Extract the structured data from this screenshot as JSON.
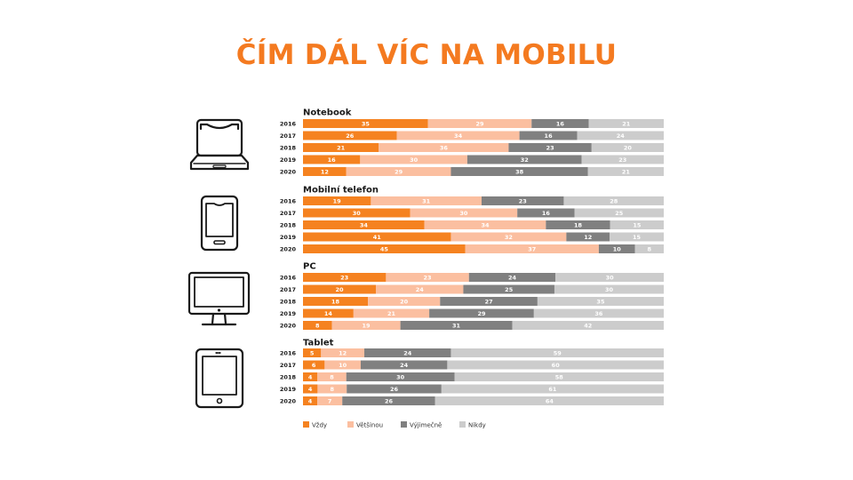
{
  "title": "ČÍM DÁL VÍC NA MOBILU",
  "colors": {
    "vzdy": "#F58220",
    "vetsinou": "#FBBFA0",
    "vyjimecne": "#808080",
    "nikdy": "#CCCCCC",
    "title": "#F47A20"
  },
  "chart_data": {
    "type": "bar",
    "orientation": "horizontal-stacked-100",
    "xlim": [
      0,
      100
    ],
    "legend_position": "bottom-left",
    "series_names": [
      "Vždy",
      "Většinou",
      "Výjimečně",
      "Nikdy"
    ],
    "groups": [
      {
        "name": "Notebook",
        "icon": "laptop-icon",
        "rows": [
          {
            "year": "2016",
            "values": [
              35,
              29,
              16,
              21
            ]
          },
          {
            "year": "2017",
            "values": [
              26,
              34,
              16,
              24
            ]
          },
          {
            "year": "2018",
            "values": [
              21,
              36,
              23,
              20
            ]
          },
          {
            "year": "2019",
            "values": [
              16,
              30,
              32,
              23
            ]
          },
          {
            "year": "2020",
            "values": [
              12,
              29,
              38,
              21
            ]
          }
        ]
      },
      {
        "name": "Mobilní telefon",
        "icon": "mobile-phone-icon",
        "rows": [
          {
            "year": "2016",
            "values": [
              19,
              31,
              23,
              28
            ]
          },
          {
            "year": "2017",
            "values": [
              30,
              30,
              16,
              25
            ]
          },
          {
            "year": "2018",
            "values": [
              34,
              34,
              18,
              15
            ]
          },
          {
            "year": "2019",
            "values": [
              41,
              32,
              12,
              15
            ]
          },
          {
            "year": "2020",
            "values": [
              45,
              37,
              10,
              8
            ]
          }
        ]
      },
      {
        "name": "PC",
        "icon": "desktop-monitor-icon",
        "rows": [
          {
            "year": "2016",
            "values": [
              23,
              23,
              24,
              30
            ]
          },
          {
            "year": "2017",
            "values": [
              20,
              24,
              25,
              30
            ]
          },
          {
            "year": "2018",
            "values": [
              18,
              20,
              27,
              35
            ]
          },
          {
            "year": "2019",
            "values": [
              14,
              21,
              29,
              36
            ]
          },
          {
            "year": "2020",
            "values": [
              8,
              19,
              31,
              42
            ]
          }
        ]
      },
      {
        "name": "Tablet",
        "icon": "tablet-icon",
        "rows": [
          {
            "year": "2016",
            "values": [
              5,
              12,
              24,
              59
            ]
          },
          {
            "year": "2017",
            "values": [
              6,
              10,
              24,
              60
            ]
          },
          {
            "year": "2018",
            "values": [
              4,
              8,
              30,
              58
            ]
          },
          {
            "year": "2019",
            "values": [
              4,
              8,
              26,
              61
            ]
          },
          {
            "year": "2020",
            "values": [
              4,
              7,
              26,
              64
            ]
          }
        ]
      }
    ]
  }
}
